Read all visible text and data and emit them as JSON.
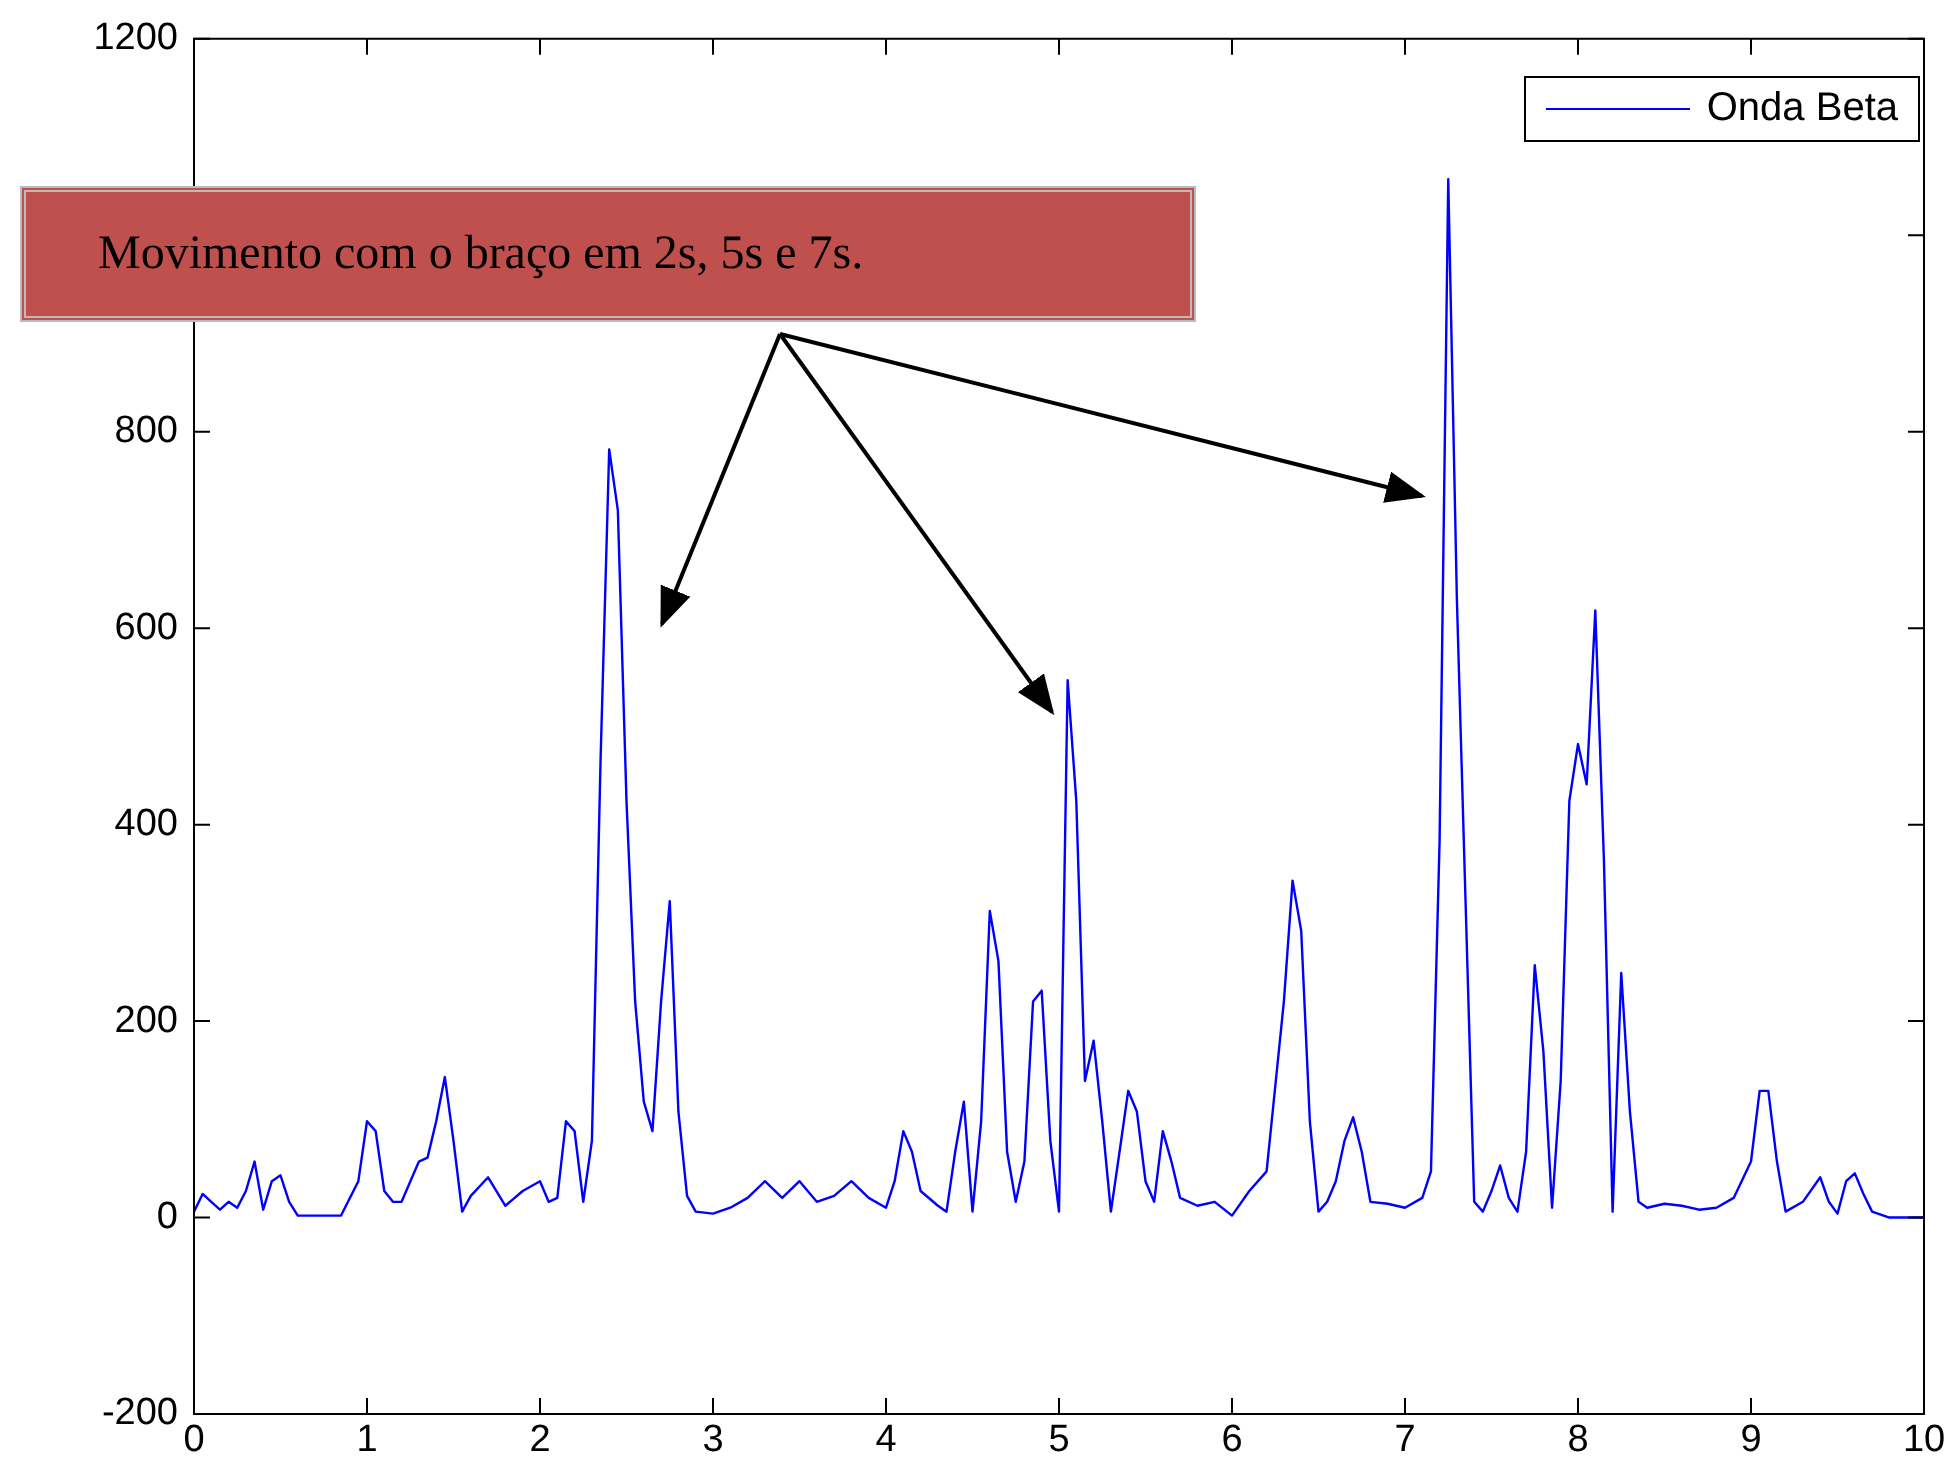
{
  "chart_data": {
    "type": "line",
    "annotations": [
      "Movimento com o braço em 2s, 5s e 7s."
    ],
    "x": [
      0,
      0.05,
      0.1,
      0.15,
      0.2,
      0.25,
      0.3,
      0.35,
      0.4,
      0.45,
      0.5,
      0.55,
      0.6,
      0.85,
      0.95,
      1.0,
      1.05,
      1.1,
      1.15,
      1.2,
      1.3,
      1.35,
      1.4,
      1.45,
      1.5,
      1.55,
      1.6,
      1.7,
      1.8,
      1.9,
      2.0,
      2.05,
      2.1,
      2.15,
      2.2,
      2.25,
      2.3,
      2.35,
      2.4,
      2.45,
      2.5,
      2.55,
      2.6,
      2.65,
      2.7,
      2.75,
      2.8,
      2.85,
      2.9,
      3.0,
      3.1,
      3.2,
      3.3,
      3.4,
      3.5,
      3.6,
      3.7,
      3.8,
      3.9,
      4.0,
      4.05,
      4.1,
      4.15,
      4.2,
      4.3,
      4.35,
      4.4,
      4.45,
      4.5,
      4.55,
      4.6,
      4.65,
      4.7,
      4.75,
      4.8,
      4.85,
      4.9,
      4.95,
      5.0,
      5.05,
      5.1,
      5.15,
      5.2,
      5.25,
      5.3,
      5.35,
      5.4,
      5.45,
      5.5,
      5.55,
      5.6,
      5.65,
      5.7,
      5.8,
      5.9,
      6.0,
      6.1,
      6.2,
      6.3,
      6.35,
      6.4,
      6.45,
      6.5,
      6.55,
      6.6,
      6.65,
      6.7,
      6.75,
      6.8,
      6.9,
      7.0,
      7.1,
      7.15,
      7.2,
      7.25,
      7.3,
      7.35,
      7.4,
      7.45,
      7.5,
      7.55,
      7.6,
      7.65,
      7.7,
      7.75,
      7.8,
      7.85,
      7.9,
      7.95,
      8.0,
      8.05,
      8.1,
      8.15,
      8.2,
      8.25,
      8.3,
      8.35,
      8.4,
      8.5,
      8.6,
      8.7,
      8.8,
      8.9,
      9.0,
      9.05,
      9.1,
      9.15,
      9.2,
      9.3,
      9.4,
      9.45,
      9.5,
      9.55,
      9.6,
      9.65,
      9.7,
      9.8,
      10
    ],
    "series": [
      {
        "name": "Onda Beta",
        "color": "#0000ff",
        "values": [
          6,
          24,
          16,
          8,
          16,
          10,
          27,
          57,
          8,
          37,
          43,
          16,
          2,
          2,
          37,
          98,
          88,
          27,
          16,
          16,
          57,
          61,
          98,
          143,
          78,
          6,
          22,
          41,
          12,
          27,
          37,
          16,
          20,
          98,
          88,
          16,
          78,
          465,
          782,
          720,
          424,
          220,
          118,
          88,
          220,
          322,
          108,
          22,
          6,
          4,
          10,
          20,
          37,
          20,
          37,
          16,
          22,
          37,
          20,
          10,
          37,
          88,
          67,
          27,
          12,
          6,
          67,
          118,
          6,
          98,
          312,
          261,
          67,
          16,
          57,
          220,
          231,
          78,
          6,
          547,
          424,
          139,
          180,
          98,
          6,
          67,
          129,
          108,
          37,
          16,
          88,
          57,
          20,
          12,
          16,
          2,
          27,
          47,
          220,
          343,
          292,
          98,
          6,
          16,
          37,
          78,
          102,
          67,
          16,
          14,
          10,
          20,
          47,
          384,
          1057,
          629,
          322,
          16,
          6,
          27,
          53,
          20,
          6,
          67,
          257,
          169,
          10,
          139,
          424,
          482,
          441,
          618,
          363,
          6,
          249,
          108,
          16,
          10,
          14,
          12,
          8,
          10,
          20,
          57,
          129,
          129,
          57,
          6,
          16,
          41,
          16,
          4,
          37,
          45,
          24,
          6,
          0,
          0
        ]
      }
    ],
    "xlim": [
      0,
      10
    ],
    "xticks": [
      0,
      1,
      2,
      3,
      4,
      5,
      6,
      7,
      8,
      9,
      10
    ],
    "ylim": [
      -200,
      1200
    ],
    "yticks": [
      -200,
      0,
      200,
      400,
      600,
      800,
      {
        "value": 1000,
        "label": null
      },
      1200
    ],
    "grid": false,
    "legend": "top right",
    "marker": "none",
    "line_style": "solid"
  }
}
